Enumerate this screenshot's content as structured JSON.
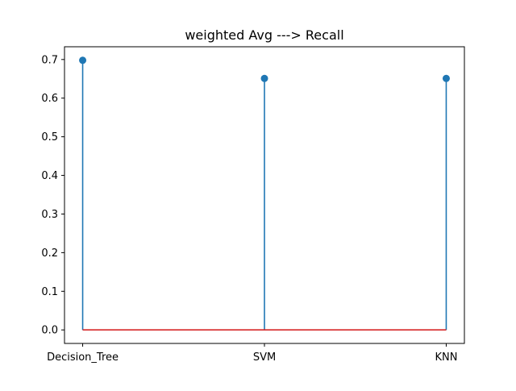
{
  "chart_data": {
    "type": "stem",
    "title": "weighted Avg ---> Recall",
    "xlabel": "",
    "ylabel": "",
    "categories": [
      "Decision_Tree",
      "SVM",
      "KNN"
    ],
    "values": [
      0.698,
      0.651,
      0.651
    ],
    "ylim": [
      -0.035,
      0.733
    ],
    "yticks": [
      0.0,
      0.1,
      0.2,
      0.3,
      0.4,
      0.5,
      0.6,
      0.7
    ],
    "ytick_labels": [
      "0.0",
      "0.1",
      "0.2",
      "0.3",
      "0.4",
      "0.5",
      "0.6",
      "0.7"
    ],
    "grid": false,
    "legend": "none",
    "colors": {
      "stem": "#1f77b4",
      "marker": "#1f77b4",
      "baseline": "#d62728",
      "axes": "#000000"
    }
  }
}
